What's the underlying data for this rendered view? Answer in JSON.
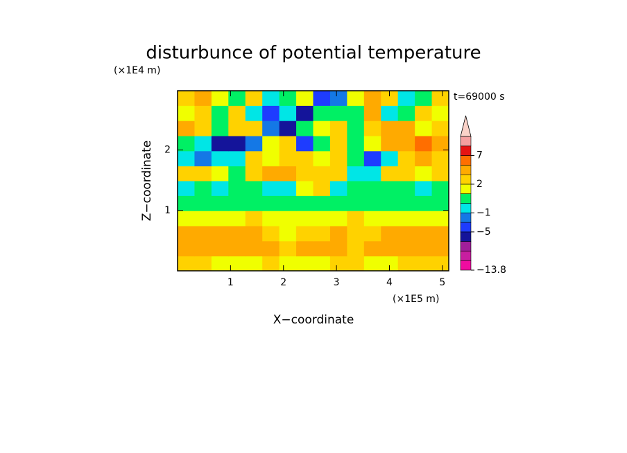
{
  "chart_data": {
    "type": "contour",
    "title": "disturbunce of potential temperature",
    "x_label": "X−coordinate",
    "y_label": "Z−coordinate",
    "x_unit": "(×1E5 m)",
    "y_unit": "(×1E4 m)",
    "annotation": "t=69000 s",
    "x": [
      0.16,
      0.48,
      0.8,
      1.12,
      1.44,
      1.76,
      2.08,
      2.4,
      2.72,
      3.04,
      3.36,
      3.68,
      4.0,
      4.32,
      4.64,
      4.96
    ],
    "y": [
      0.12,
      0.37,
      0.62,
      0.87,
      1.12,
      1.37,
      1.61,
      1.86,
      2.11,
      2.36,
      2.61,
      2.86
    ],
    "z": [
      [
        2,
        2,
        1.5,
        1.5,
        1.5,
        2,
        1.5,
        1.5,
        1.5,
        2,
        2,
        1.5,
        1.5,
        2,
        2,
        2
      ],
      [
        3,
        3,
        3,
        3,
        3,
        3,
        2,
        3,
        3,
        3,
        2,
        3,
        3,
        3,
        3,
        3
      ],
      [
        3,
        3,
        3,
        3,
        3,
        2,
        1.5,
        2,
        2,
        3,
        2,
        2,
        3,
        3,
        3,
        3
      ],
      [
        1,
        1.5,
        1.5,
        1.5,
        2,
        1.5,
        1.5,
        1.5,
        1.5,
        1.5,
        2,
        1.5,
        1.5,
        1,
        1,
        1
      ],
      [
        0,
        0,
        0,
        0,
        0,
        0,
        0.5,
        0,
        0,
        0,
        0,
        0,
        0,
        0,
        0,
        0
      ],
      [
        -1,
        0,
        -0.5,
        0,
        0.5,
        -1,
        -0.5,
        1,
        2,
        -0.5,
        0,
        0,
        0.5,
        0,
        -0.5,
        0
      ],
      [
        2,
        2,
        1,
        0.5,
        2,
        3,
        3,
        2,
        2,
        2,
        -1,
        -1,
        2,
        2,
        1,
        2
      ],
      [
        -1,
        -2,
        -0.5,
        -1,
        2,
        1,
        2,
        2,
        1,
        2,
        0.5,
        -4,
        -1,
        2,
        3,
        2
      ],
      [
        0.5,
        -0.5,
        -6,
        -6,
        -3,
        1,
        2,
        -4,
        0,
        2,
        0.5,
        1,
        3,
        4,
        5,
        4
      ],
      [
        3,
        2,
        0,
        2,
        2,
        -2,
        -6,
        0.5,
        1,
        2,
        0.5,
        2,
        4,
        3,
        1,
        2
      ],
      [
        1,
        2,
        0.5,
        2,
        -1,
        -4,
        -1,
        -6,
        0,
        0.5,
        0,
        3,
        -1,
        0.5,
        2,
        1
      ],
      [
        2,
        3,
        1,
        0.5,
        2,
        -0.5,
        0,
        1,
        -4,
        -2,
        1,
        3,
        2,
        -0.5,
        0.5,
        2
      ]
    ],
    "xlim": [
      0,
      5.12
    ],
    "ylim": [
      0,
      2.98
    ],
    "xticks": [
      1,
      2,
      3,
      4,
      5
    ],
    "yticks": [
      1,
      2
    ],
    "levels": [
      -13.8,
      -11,
      -9,
      -7,
      -5,
      -3,
      -1,
      0,
      1,
      2,
      3,
      5,
      7,
      9,
      11
    ],
    "colors": [
      "#f00ca0",
      "#c81ea0",
      "#a01e9a",
      "#14149a",
      "#1e3cff",
      "#1478e6",
      "#00e6e6",
      "#00f064",
      "#f0ff00",
      "#ffd200",
      "#ffaa00",
      "#ff6e00",
      "#e61414",
      "#f5a0a0"
    ],
    "over_color": "#fad2c8",
    "colorbar_ticks": [
      {
        "value": -13.8,
        "label": "−13.8"
      },
      {
        "value": -5,
        "label": "−5"
      },
      {
        "value": -1,
        "label": "−1"
      },
      2,
      7
    ]
  }
}
